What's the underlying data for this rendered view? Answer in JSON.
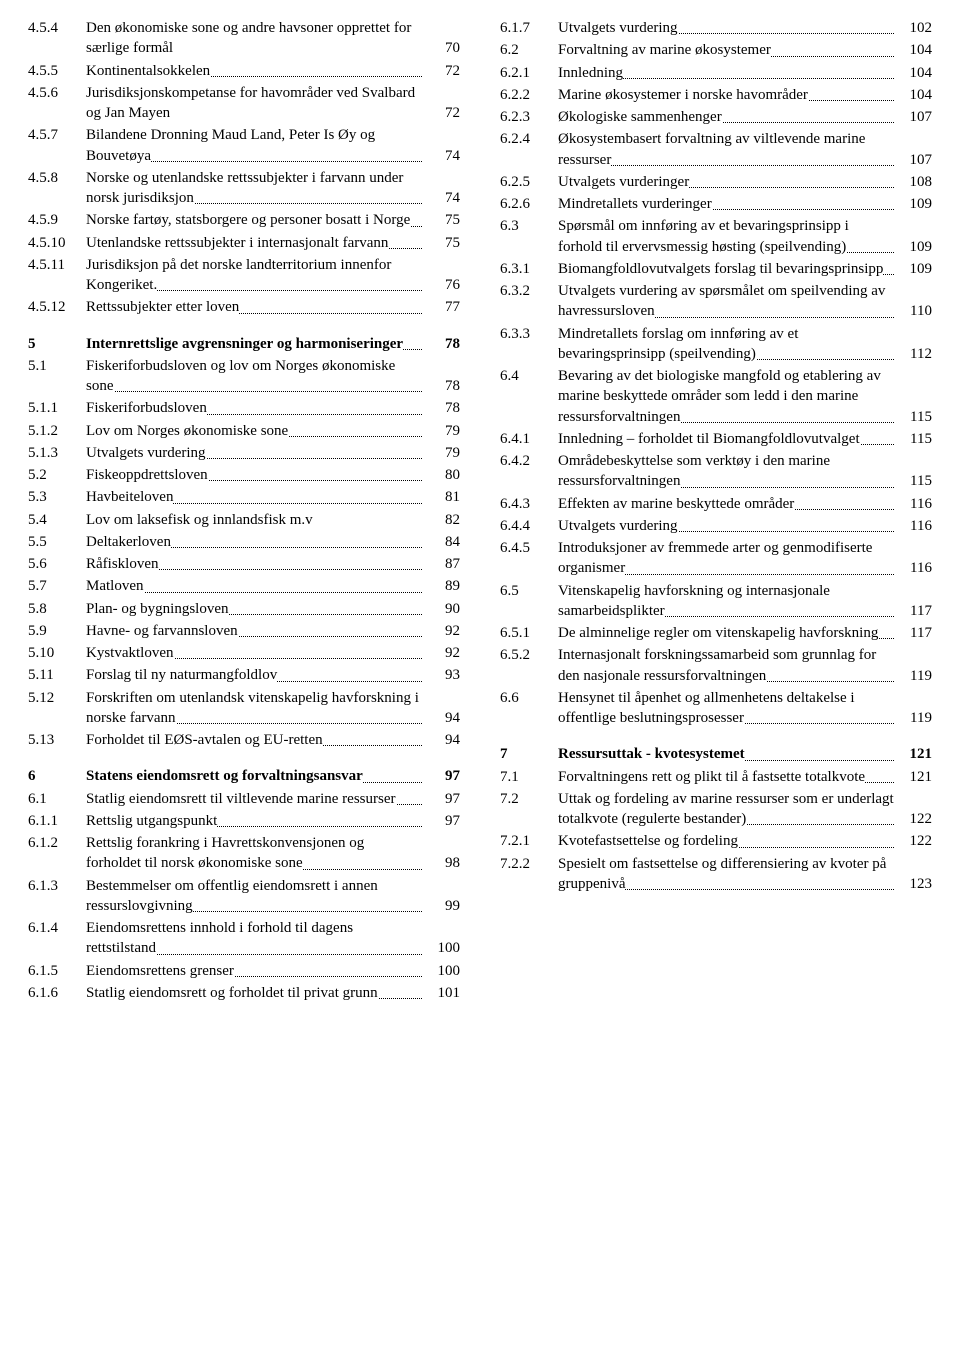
{
  "left": [
    {
      "num": "4.5.4",
      "title": "Den økonomiske sone og andre havsoner opprettet for særlige formål",
      "page": "70",
      "leader": false
    },
    {
      "num": "4.5.5",
      "title": "Kontinentalsokkelen",
      "page": "72",
      "leader": true
    },
    {
      "num": "4.5.6",
      "title": "Jurisdiksjonskompetanse for havområder ved Svalbard og Jan Mayen",
      "page": "72",
      "leader": false
    },
    {
      "num": "4.5.7",
      "title": "Bilandene Dronning Maud Land, Peter Is Øy og Bouvetøya",
      "page": "74",
      "leader": true
    },
    {
      "num": "4.5.8",
      "title": "Norske og utenlandske rettssubjekter i farvann under norsk jurisdiksjon",
      "page": "74",
      "leader": true
    },
    {
      "num": "4.5.9",
      "title": "Norske fartøy, statsborgere og personer bosatt i Norge",
      "page": "75",
      "leader": true
    },
    {
      "num": "4.5.10",
      "title": "Utenlandske rettssubjekter i internasjonalt farvann",
      "page": "75",
      "leader": true
    },
    {
      "num": "4.5.11",
      "title": "Jurisdiksjon på det norske landterritorium innenfor Kongeriket.",
      "page": "76",
      "leader": true
    },
    {
      "num": "4.5.12",
      "title": "Rettssubjekter etter loven",
      "page": "77",
      "leader": true
    },
    {
      "spacer": true
    },
    {
      "num": "5",
      "title": "Internrettslige avgrensninger og harmoniseringer",
      "page": "78",
      "leader": true,
      "bold": true
    },
    {
      "num": "5.1",
      "title": "Fiskeriforbudsloven og lov om Norges økonomiske sone",
      "page": "78",
      "leader": true
    },
    {
      "num": "5.1.1",
      "title": "Fiskeriforbudsloven",
      "page": "78",
      "leader": true
    },
    {
      "num": "5.1.2",
      "title": "Lov om Norges økonomiske sone",
      "page": "79",
      "leader": true
    },
    {
      "num": "5.1.3",
      "title": "Utvalgets vurdering",
      "page": "79",
      "leader": true
    },
    {
      "num": "5.2",
      "title": "Fiskeoppdrettsloven",
      "page": "80",
      "leader": true
    },
    {
      "num": "5.3",
      "title": "Havbeiteloven",
      "page": "81",
      "leader": true
    },
    {
      "num": "5.4",
      "title": "Lov om laksefisk og innlandsfisk m.v",
      "page": "82",
      "leader": false
    },
    {
      "num": "5.5",
      "title": "Deltakerloven",
      "page": "84",
      "leader": true
    },
    {
      "num": "5.6",
      "title": "Råfiskloven",
      "page": "87",
      "leader": true
    },
    {
      "num": "5.7",
      "title": "Matloven",
      "page": "89",
      "leader": true
    },
    {
      "num": "5.8",
      "title": "Plan- og bygningsloven",
      "page": "90",
      "leader": true
    },
    {
      "num": "5.9",
      "title": "Havne- og farvannsloven",
      "page": "92",
      "leader": true
    },
    {
      "num": "5.10",
      "title": "Kystvaktloven",
      "page": "92",
      "leader": true
    },
    {
      "num": "5.11",
      "title": "Forslag til ny naturmangfoldlov",
      "page": "93",
      "leader": true
    },
    {
      "num": "5.12",
      "title": "Forskriften om utenlandsk vitenskapelig havforskning i norske farvann",
      "page": "94",
      "leader": true
    },
    {
      "num": "5.13",
      "title": "Forholdet til EØS-avtalen og EU-retten",
      "page": "94",
      "leader": true
    },
    {
      "spacer": true
    },
    {
      "num": "6",
      "title": "Statens eiendomsrett og forvaltningsansvar",
      "page": "97",
      "leader": true,
      "bold": true
    },
    {
      "num": "6.1",
      "title": "Statlig eiendomsrett til viltlevende marine ressurser",
      "page": "97",
      "leader": true
    },
    {
      "num": "6.1.1",
      "title": "Rettslig utgangspunkt",
      "page": "97",
      "leader": true
    },
    {
      "num": "6.1.2",
      "title": "Rettslig forankring i Havrettskonvensjonen og forholdet til norsk økonomiske sone",
      "page": "98",
      "leader": true
    },
    {
      "num": "6.1.3",
      "title": "Bestemmelser om offentlig eiendomsrett i annen ressurslovgivning",
      "page": "99",
      "leader": true
    },
    {
      "num": "6.1.4",
      "title": "Eiendomsrettens innhold i forhold til dagens rettstilstand",
      "page": "100",
      "leader": true
    },
    {
      "num": "6.1.5",
      "title": "Eiendomsrettens grenser",
      "page": "100",
      "leader": true
    },
    {
      "num": "6.1.6",
      "title": "Statlig eiendomsrett og forholdet til privat grunn",
      "page": "101",
      "leader": true
    }
  ],
  "right": [
    {
      "num": "6.1.7",
      "title": "Utvalgets vurdering",
      "page": "102",
      "leader": true
    },
    {
      "num": "6.2",
      "title": "Forvaltning av marine økosystemer",
      "page": "104",
      "leader": true
    },
    {
      "num": "6.2.1",
      "title": "Innledning",
      "page": "104",
      "leader": true
    },
    {
      "num": "6.2.2",
      "title": "Marine økosystemer i norske havområder",
      "page": "104",
      "leader": true
    },
    {
      "num": "6.2.3",
      "title": "Økologiske sammenhenger",
      "page": "107",
      "leader": true
    },
    {
      "num": "6.2.4",
      "title": "Økosystembasert forvaltning av viltlevende marine ressurser",
      "page": "107",
      "leader": true
    },
    {
      "num": "6.2.5",
      "title": "Utvalgets vurderinger",
      "page": "108",
      "leader": true
    },
    {
      "num": "6.2.6",
      "title": "Mindretallets vurderinger",
      "page": "109",
      "leader": true
    },
    {
      "num": "6.3",
      "title": "Spørsmål om innføring av et bevaringsprinsipp i forhold til ervervsmessig høsting (speilvending)",
      "page": "109",
      "leader": true
    },
    {
      "num": "6.3.1",
      "title": "Biomangfoldlovutvalgets forslag til bevaringsprinsipp",
      "page": "109",
      "leader": true
    },
    {
      "num": "6.3.2",
      "title": "Utvalgets vurdering av spørsmålet om speilvending av havressursloven",
      "page": "110",
      "leader": true
    },
    {
      "num": "6.3.3",
      "title": "Mindretallets forslag om innføring av et bevaringsprinsipp (speilvending)",
      "page": "112",
      "leader": true
    },
    {
      "num": "6.4",
      "title": "Bevaring av det biologiske mangfold og etablering av marine beskyttede områder som ledd i den marine ressursforvaltningen",
      "page": "115",
      "leader": true
    },
    {
      "num": "6.4.1",
      "title": "Innledning – forholdet til Biomangfoldlovutvalget",
      "page": "115",
      "leader": true
    },
    {
      "num": "6.4.2",
      "title": "Områdebeskyttelse som verktøy i den marine ressursforvaltningen",
      "page": "115",
      "leader": true
    },
    {
      "num": "6.4.3",
      "title": "Effekten av marine beskyttede områder",
      "page": "116",
      "leader": true
    },
    {
      "num": "6.4.4",
      "title": "Utvalgets vurdering",
      "page": "116",
      "leader": true
    },
    {
      "num": "6.4.5",
      "title": "Introduksjoner av fremmede arter og genmodifiserte organismer",
      "page": "116",
      "leader": true
    },
    {
      "num": "6.5",
      "title": "Vitenskapelig havforskning og internasjonale samarbeidsplikter",
      "page": "117",
      "leader": true
    },
    {
      "num": "6.5.1",
      "title": "De alminnelige regler om vitenskapelig havforskning",
      "page": "117",
      "leader": true
    },
    {
      "num": "6.5.2",
      "title": "Internasjonalt forskningssamarbeid som grunnlag for den nasjonale ressursforvaltningen",
      "page": "119",
      "leader": true
    },
    {
      "num": "6.6",
      "title": "Hensynet til åpenhet og allmenhetens deltakelse i offentlige beslutningsprosesser",
      "page": "119",
      "leader": true
    },
    {
      "spacer": true
    },
    {
      "num": "7",
      "title": "Ressursuttak - kvotesystemet",
      "page": "121",
      "leader": true,
      "bold": true
    },
    {
      "num": "7.1",
      "title": "Forvaltningens rett og plikt til å fastsette totalkvote",
      "page": "121",
      "leader": true
    },
    {
      "num": "7.2",
      "title": "Uttak og fordeling av marine ressurser som er underlagt totalkvote (regulerte bestander)",
      "page": "122",
      "leader": true
    },
    {
      "num": "7.2.1",
      "title": "Kvotefastsettelse og fordeling",
      "page": "122",
      "leader": true
    },
    {
      "num": "7.2.2",
      "title": "Spesielt om fastsettelse og differensiering av kvoter på gruppenivå",
      "page": "123",
      "leader": true
    }
  ]
}
